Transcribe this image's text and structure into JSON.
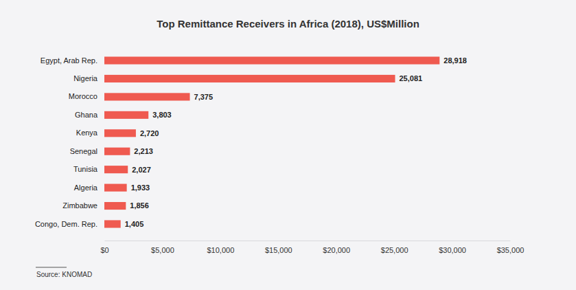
{
  "chart_data": {
    "type": "bar",
    "orientation": "horizontal",
    "title": "Top Remittance Receivers in Africa (2018), US$Million",
    "categories": [
      "Egypt, Arab Rep.",
      "Nigeria",
      "Morocco",
      "Ghana",
      "Kenya",
      "Senegal",
      "Tunisia",
      "Algeria",
      "Zimbabwe",
      "Congo, Dem. Rep."
    ],
    "values": [
      28918,
      25081,
      7375,
      3803,
      2720,
      2213,
      2027,
      1933,
      1856,
      1405
    ],
    "value_labels": [
      "28,918",
      "25,081",
      "7,375",
      "3,803",
      "2,720",
      "2,213",
      "2,027",
      "1,933",
      "1,856",
      "1,405"
    ],
    "data_labels": true,
    "color": "#ef5a50",
    "xlim": [
      0,
      35000
    ],
    "xticks": [
      {
        "value": 0,
        "label": "$0"
      },
      {
        "value": 5000,
        "label": "$5,000"
      },
      {
        "value": 10000,
        "label": "$10,000"
      },
      {
        "value": 15000,
        "label": "$15,000"
      },
      {
        "value": 20000,
        "label": "$20,000"
      },
      {
        "value": 25000,
        "label": "$25,000"
      },
      {
        "value": 30000,
        "label": "$30,000"
      },
      {
        "value": 35000,
        "label": "$35,000"
      }
    ],
    "grid": false,
    "source": "Source: KNOMAD"
  }
}
